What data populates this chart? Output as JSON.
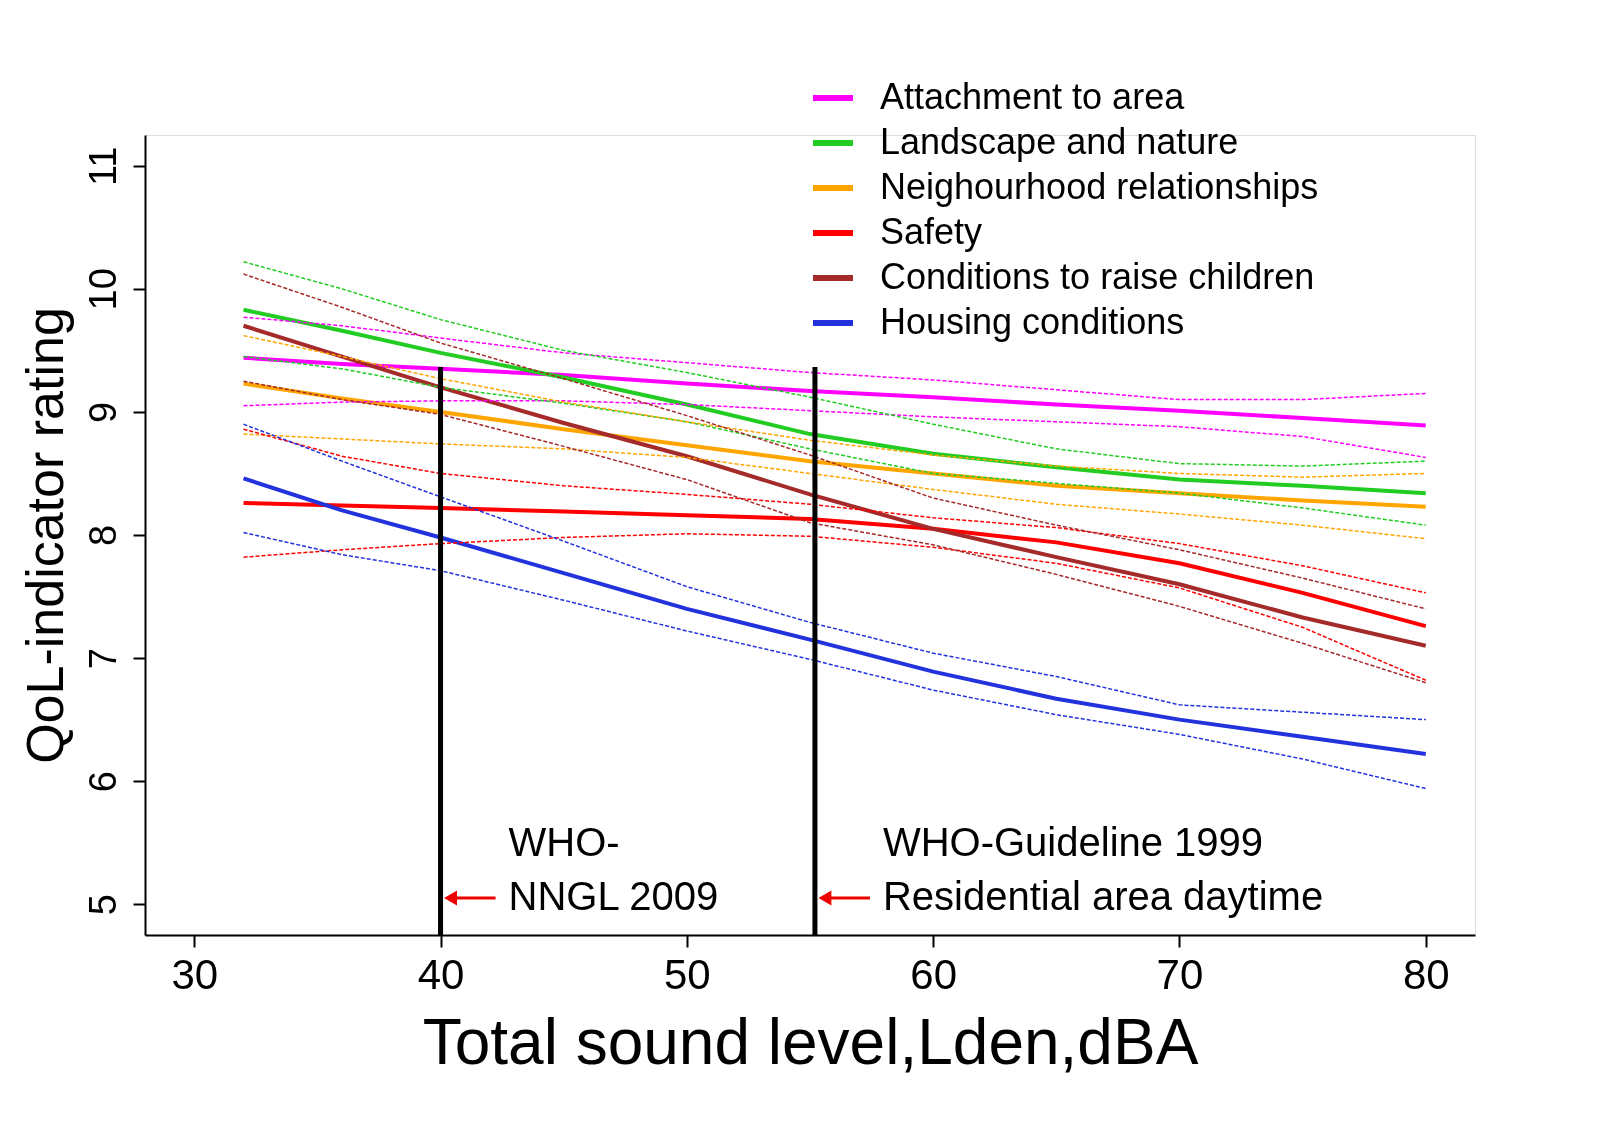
{
  "chart_data": {
    "type": "line",
    "xlabel": "Total sound level,Lden,dBA",
    "ylabel": "QoL-indicator rating",
    "x": [
      32,
      36,
      40,
      45,
      50,
      55,
      60,
      65,
      70,
      75,
      80
    ],
    "xlim": [
      28,
      82
    ],
    "ylim": [
      4.75,
      11.25
    ],
    "xticks": [
      30,
      40,
      50,
      60,
      70,
      80
    ],
    "yticks": [
      5,
      6,
      7,
      8,
      9,
      10,
      11
    ],
    "grid": false,
    "legend": "top right",
    "marker": "none",
    "series": [
      {
        "name": "Attachment to area",
        "color": "#ff00ff",
        "values": [
          9.44,
          9.39,
          9.35,
          9.3,
          9.23,
          9.17,
          9.12,
          9.06,
          9.01,
          8.95,
          8.89
        ]
      },
      {
        "name": "Landscape and nature",
        "color": "#22cc22",
        "values": [
          9.83,
          9.66,
          9.48,
          9.28,
          9.06,
          8.82,
          8.66,
          8.55,
          8.45,
          8.4,
          8.34
        ]
      },
      {
        "name": "Neighourhood relationships",
        "color": "#ffa500",
        "values": [
          9.23,
          9.11,
          9.0,
          8.86,
          8.73,
          8.6,
          8.5,
          8.4,
          8.34,
          8.28,
          8.23
        ]
      },
      {
        "name": "Safety",
        "color": "#ff0000",
        "values": [
          8.26,
          8.24,
          8.22,
          8.19,
          8.16,
          8.13,
          8.05,
          7.94,
          7.77,
          7.53,
          7.26
        ]
      },
      {
        "name": "Conditions to raise children",
        "color": "#a52a2a",
        "values": [
          9.7,
          9.45,
          9.2,
          8.91,
          8.64,
          8.33,
          8.05,
          7.82,
          7.6,
          7.33,
          7.1
        ]
      },
      {
        "name": "Housing conditions",
        "color": "#2233dd",
        "values": [
          8.46,
          8.2,
          7.98,
          7.69,
          7.4,
          7.15,
          6.89,
          6.67,
          6.5,
          6.36,
          6.22
        ]
      },
      {
        "color": "#ff00ff",
        "line_style": "dashed",
        "values": [
          9.05,
          9.08,
          9.09,
          9.09,
          9.06,
          9.01,
          8.96,
          8.92,
          8.88,
          8.8,
          8.63
        ]
      },
      {
        "color": "#ff00ff",
        "line_style": "dashed",
        "values": [
          9.77,
          9.7,
          9.6,
          9.48,
          9.4,
          9.32,
          9.26,
          9.18,
          9.1,
          9.1,
          9.15
        ]
      },
      {
        "color": "#22cc22",
        "line_style": "dashed",
        "values": [
          9.45,
          9.35,
          9.2,
          9.07,
          8.92,
          8.7,
          8.5,
          8.42,
          8.34,
          8.22,
          8.08
        ]
      },
      {
        "color": "#22cc22",
        "line_style": "dashed",
        "values": [
          10.22,
          10.0,
          9.75,
          9.5,
          9.32,
          9.12,
          8.9,
          8.7,
          8.58,
          8.56,
          8.6
        ]
      },
      {
        "color": "#ffa500",
        "line_style": "dashed",
        "values": [
          8.82,
          8.78,
          8.74,
          8.7,
          8.63,
          8.5,
          8.37,
          8.25,
          8.17,
          8.08,
          7.97
        ]
      },
      {
        "color": "#ffa500",
        "line_style": "dashed",
        "values": [
          9.62,
          9.45,
          9.27,
          9.08,
          8.92,
          8.77,
          8.65,
          8.56,
          8.5,
          8.47,
          8.5
        ]
      },
      {
        "color": "#ff0000",
        "line_style": "dashed",
        "values": [
          7.82,
          7.88,
          7.93,
          7.98,
          8.01,
          7.99,
          7.9,
          7.77,
          7.57,
          7.25,
          6.82
        ]
      },
      {
        "color": "#ff0000",
        "line_style": "dashed",
        "values": [
          8.86,
          8.64,
          8.5,
          8.4,
          8.33,
          8.25,
          8.14,
          8.06,
          7.93,
          7.75,
          7.53
        ]
      },
      {
        "color": "#a52a2a",
        "line_style": "dashed",
        "values": [
          9.25,
          9.1,
          8.98,
          8.72,
          8.45,
          8.1,
          7.92,
          7.68,
          7.42,
          7.12,
          6.8
        ]
      },
      {
        "color": "#a52a2a",
        "line_style": "dashed",
        "values": [
          10.12,
          9.85,
          9.56,
          9.27,
          8.97,
          8.65,
          8.3,
          8.08,
          7.88,
          7.65,
          7.4
        ]
      },
      {
        "color": "#2233dd",
        "line_style": "dashed",
        "values": [
          8.02,
          7.84,
          7.71,
          7.47,
          7.22,
          6.99,
          6.74,
          6.54,
          6.38,
          6.18,
          5.94
        ]
      },
      {
        "color": "#2233dd",
        "line_style": "dashed",
        "values": [
          8.9,
          8.6,
          8.31,
          7.95,
          7.58,
          7.29,
          7.04,
          6.85,
          6.62,
          6.56,
          6.5
        ]
      }
    ],
    "ref_lines": [
      {
        "axis": "x",
        "value": 40,
        "label": "WHO-\nNNGL 2009",
        "color": "#000000"
      },
      {
        "axis": "x",
        "value": 55.2,
        "label": "WHO-Guideline 1999\nResidential area daytime",
        "color": "#000000"
      }
    ]
  }
}
